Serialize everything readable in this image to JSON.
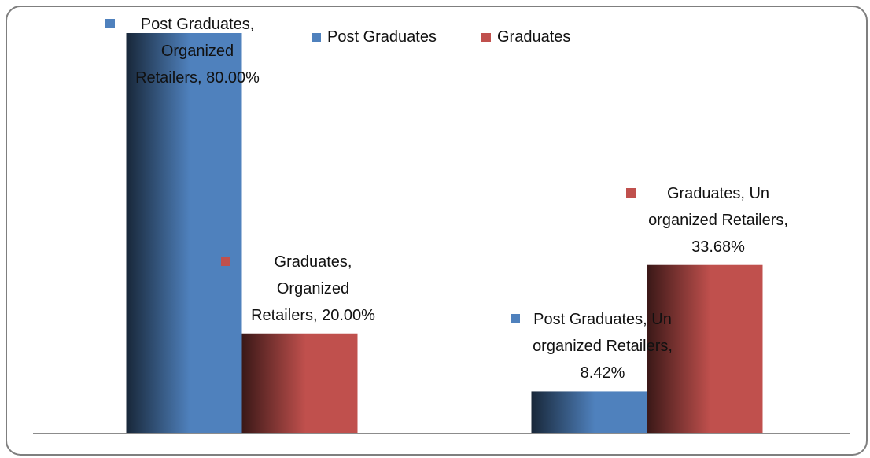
{
  "chart_data": {
    "type": "bar",
    "categories": [
      null,
      null
    ],
    "series": [
      {
        "name": "Post Graduates",
        "color": "#4f81bd",
        "values": [
          80,
          8.42
        ],
        "value_labels": [
          "Post Graduates, Organized Retailers, 80.00%",
          "Post Graduates, Un organized Retailers, 8.42%"
        ]
      },
      {
        "name": "Graduates",
        "color": "#c0504d",
        "values": [
          20,
          33.68
        ],
        "value_labels": [
          "Graduates, Organized Retailers, 20.00%",
          "Graduates, Un organized Retailers, 33.68%"
        ]
      }
    ],
    "legend": "top"
  }
}
